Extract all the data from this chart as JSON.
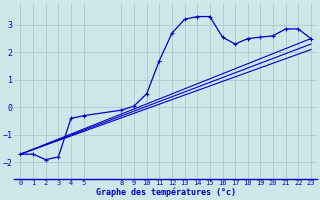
{
  "xlabel": "Graphe des températures (°c)",
  "background_color": "#cce8e8",
  "grid_color": "#aacccc",
  "line_color": "#0000cc",
  "xlim": [
    -0.5,
    23.5
  ],
  "ylim": [
    -2.6,
    3.8
  ],
  "yticks": [
    -2,
    -1,
    0,
    1,
    2,
    3
  ],
  "xticks": [
    0,
    1,
    2,
    3,
    4,
    5,
    8,
    9,
    10,
    11,
    12,
    13,
    14,
    15,
    16,
    17,
    18,
    19,
    20,
    21,
    22,
    23
  ],
  "curve_x": [
    0,
    1,
    2,
    3,
    4,
    5,
    8,
    9,
    10,
    11,
    12,
    13,
    14,
    15,
    16,
    17,
    18,
    19,
    20,
    21,
    22,
    23
  ],
  "curve_y": [
    -1.7,
    -1.7,
    -1.9,
    -1.8,
    -0.4,
    -0.3,
    -0.1,
    0.05,
    0.5,
    1.7,
    2.7,
    3.2,
    3.3,
    3.3,
    2.55,
    2.3,
    2.5,
    2.55,
    2.6,
    2.85,
    2.85,
    2.5
  ],
  "line1_x": [
    0,
    23
  ],
  "line1_y": [
    -1.7,
    2.5
  ],
  "line2_x": [
    0,
    23
  ],
  "line2_y": [
    -1.7,
    2.1
  ],
  "line3_x": [
    0,
    23
  ],
  "line3_y": [
    -1.7,
    2.3
  ]
}
